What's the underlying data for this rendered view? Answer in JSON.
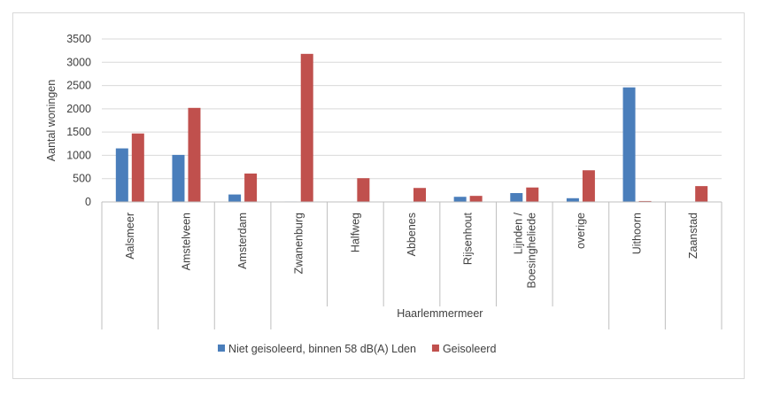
{
  "chart_data": {
    "type": "bar",
    "ylabel": "Aantal woningen",
    "ylim": [
      0,
      3500
    ],
    "yticks": [
      0,
      500,
      1000,
      1500,
      2000,
      2500,
      3000,
      3500
    ],
    "ytick_labels": [
      "0",
      "500",
      "1000",
      "1500",
      "2000",
      "2500",
      "3000",
      "3500"
    ],
    "grid": true,
    "legend_position": "bottom",
    "categories": [
      "Aalsmeer",
      "Amstelveen",
      "Amsterdam",
      "Zwanenburg",
      "Halfweg",
      "Abbenes",
      "Rijsenhout",
      "Lijnden / Boesingheliede",
      "overige",
      "Uithoorn",
      "Zaanstad"
    ],
    "category_lines": [
      [
        "Aalsmeer"
      ],
      [
        "Amstelveen"
      ],
      [
        "Amsterdam"
      ],
      [
        "Zwanenburg"
      ],
      [
        "Halfweg"
      ],
      [
        "Abbenes"
      ],
      [
        "Rijsenhout"
      ],
      [
        "Lijnden /",
        "Boesingheliede"
      ],
      [
        "overige"
      ],
      [
        "Uithoorn"
      ],
      [
        "Zaanstad"
      ]
    ],
    "group_label": "Haarlemmermeer",
    "group_range": [
      3,
      8
    ],
    "series": [
      {
        "name": "Niet geisoleerd, binnen 58 dB(A) Lden",
        "color": "#4a7ebb",
        "values": [
          1150,
          1010,
          160,
          10,
          0,
          0,
          110,
          190,
          80,
          2460,
          0
        ]
      },
      {
        "name": "Geisoleerd",
        "color": "#c0504d",
        "values": [
          1470,
          2020,
          610,
          3180,
          510,
          300,
          130,
          310,
          680,
          20,
          340
        ]
      }
    ],
    "colors": {
      "grid": "#d9d9d9",
      "axis": "#bfbfbf",
      "text": "#404040"
    }
  }
}
